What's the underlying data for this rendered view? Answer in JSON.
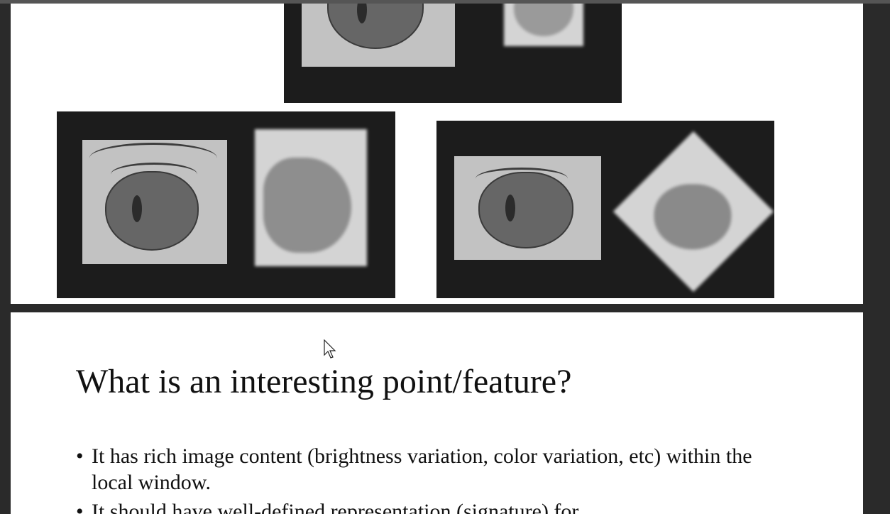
{
  "slide_title": "What is an interesting point/feature?",
  "bullets": [
    "It has rich image content (brightness variation, color variation, etc) within the local window.",
    "It should have well-defined representation (signature) for"
  ],
  "cursor_icon": "arrow-pointer-icon"
}
